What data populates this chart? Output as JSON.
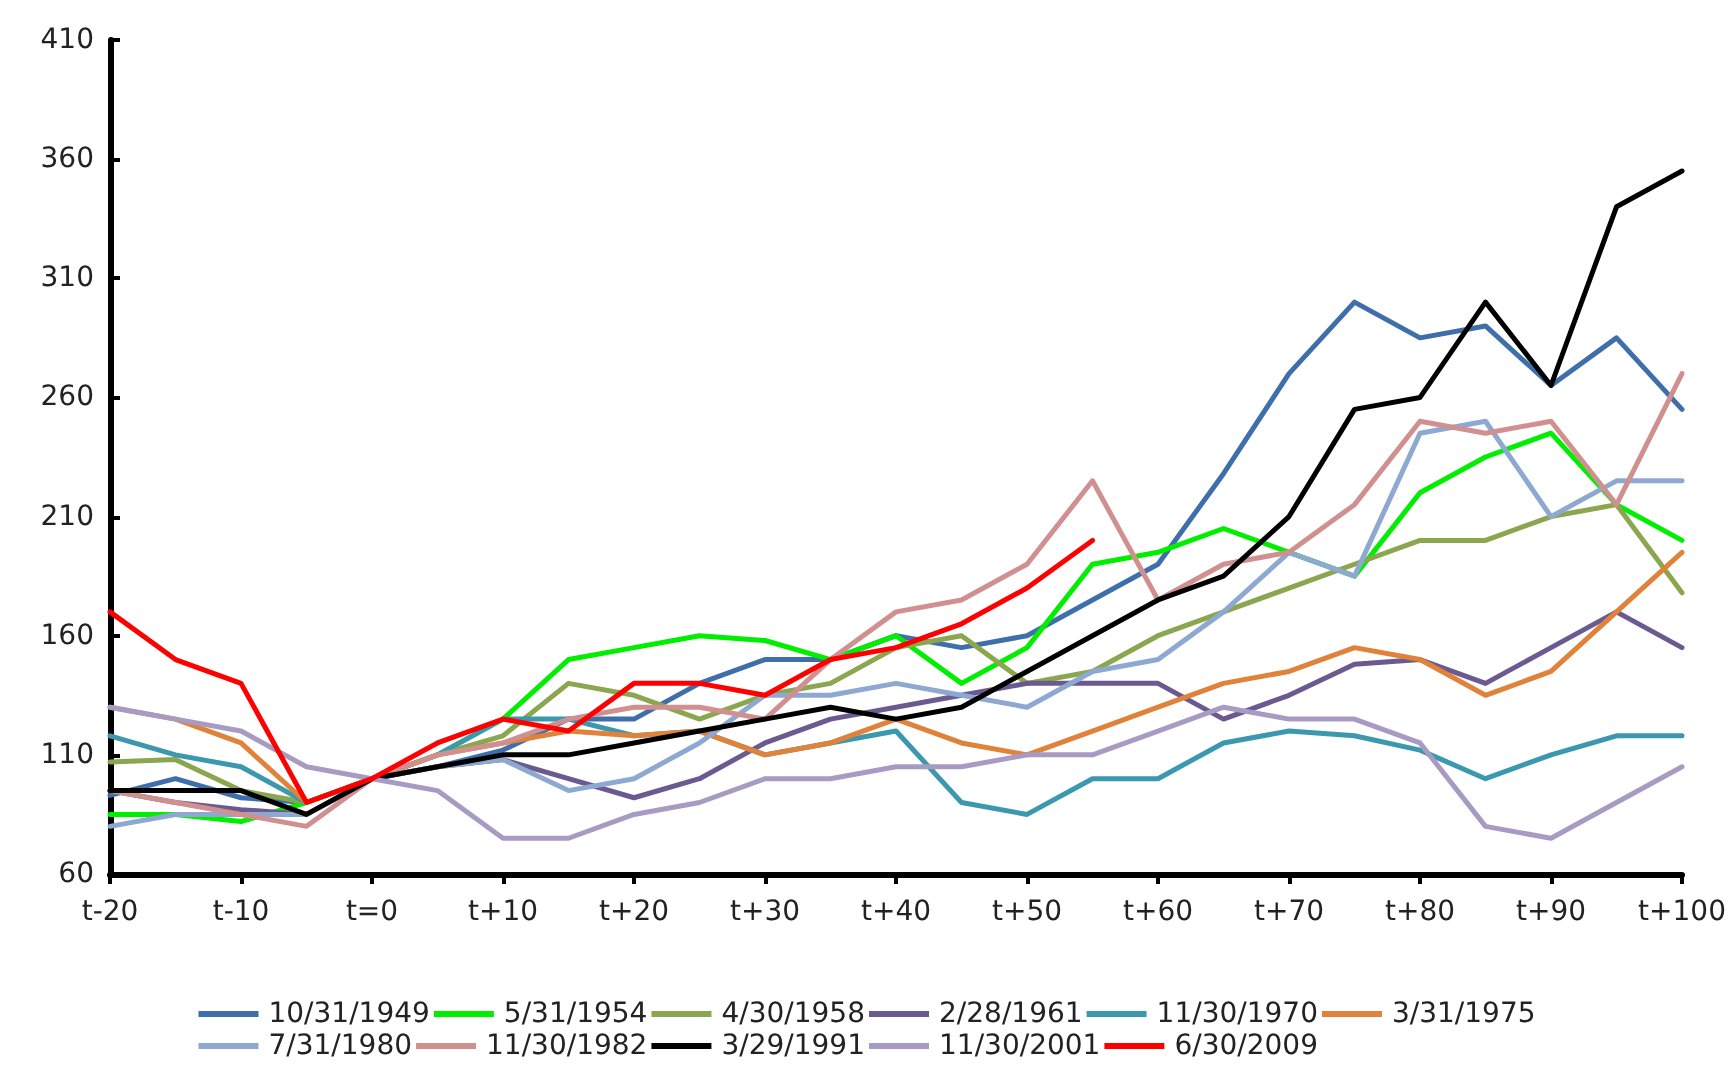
{
  "chart_data": {
    "type": "line",
    "ylim": [
      60,
      410
    ],
    "categories": [
      "t-20",
      null,
      "t-10",
      null,
      "t=0",
      null,
      "t+10",
      null,
      "t+20",
      null,
      "t+30",
      null,
      "t+40",
      null,
      "t+50",
      null,
      "t+60",
      null,
      "t+70",
      null,
      "t+80",
      null,
      "t+90",
      null,
      "t+100"
    ],
    "yticks": [
      60,
      110,
      160,
      210,
      260,
      310,
      360,
      410
    ],
    "grid": false,
    "legend": "bottom",
    "marker": "none",
    "line_style": "solid",
    "series": [
      {
        "name": "10/31/1949",
        "color": "#3f6faa",
        "values": [
          93,
          100,
          92,
          90,
          100,
          105,
          112,
          125,
          125,
          140,
          150,
          150,
          160,
          155,
          160,
          175,
          190,
          228,
          270,
          300,
          285,
          290,
          265,
          285,
          255
        ]
      },
      {
        "name": "5/31/1954",
        "color": "#00ee00",
        "values": [
          85,
          85,
          82,
          90,
          100,
          110,
          125,
          150,
          155,
          160,
          158,
          150,
          160,
          140,
          155,
          190,
          195,
          205,
          195,
          185,
          220,
          235,
          245,
          215,
          200
        ]
      },
      {
        "name": "4/30/1958",
        "color": "#8aa64e",
        "values": [
          107,
          108,
          95,
          90,
          100,
          110,
          118,
          140,
          135,
          125,
          135,
          140,
          155,
          160,
          140,
          145,
          160,
          170,
          180,
          190,
          200,
          200,
          210,
          215,
          178
        ]
      },
      {
        "name": "2/28/1961",
        "color": "#6a5a8f",
        "values": [
          95,
          90,
          87,
          85,
          100,
          105,
          108,
          100,
          92,
          100,
          115,
          125,
          130,
          135,
          140,
          140,
          140,
          125,
          135,
          148,
          150,
          140,
          155,
          170,
          155
        ]
      },
      {
        "name": "11/30/1970",
        "color": "#3b98ae",
        "values": [
          118,
          110,
          105,
          90,
          100,
          110,
          125,
          125,
          118,
          120,
          110,
          115,
          120,
          90,
          85,
          100,
          100,
          115,
          120,
          118,
          112,
          100,
          110,
          118,
          118
        ]
      },
      {
        "name": "3/31/1975",
        "color": "#e0823a",
        "values": [
          130,
          125,
          115,
          90,
          100,
          110,
          115,
          120,
          118,
          120,
          110,
          115,
          125,
          115,
          110,
          120,
          130,
          140,
          145,
          155,
          150,
          135,
          145,
          170,
          195
        ]
      },
      {
        "name": "7/31/1980",
        "color": "#8ea9d1",
        "values": [
          80,
          85,
          85,
          85,
          100,
          105,
          108,
          95,
          100,
          115,
          135,
          135,
          140,
          135,
          130,
          145,
          150,
          170,
          195,
          185,
          245,
          250,
          210,
          225,
          225
        ]
      },
      {
        "name": "11/30/1982",
        "color": "#d09090",
        "values": [
          95,
          90,
          85,
          80,
          100,
          110,
          115,
          125,
          130,
          130,
          125,
          150,
          170,
          175,
          190,
          225,
          175,
          190,
          195,
          215,
          250,
          245,
          250,
          215,
          270
        ]
      },
      {
        "name": "3/29/1991",
        "color": "#000000",
        "values": [
          95,
          95,
          95,
          85,
          100,
          105,
          110,
          110,
          115,
          120,
          125,
          130,
          125,
          130,
          145,
          160,
          175,
          185,
          210,
          255,
          260,
          300,
          265,
          340,
          355
        ]
      },
      {
        "name": "11/30/2001",
        "color": "#a89bc3",
        "values": [
          130,
          125,
          120,
          105,
          100,
          95,
          75,
          75,
          85,
          90,
          100,
          100,
          105,
          105,
          110,
          110,
          120,
          130,
          125,
          125,
          115,
          80,
          75,
          90,
          105
        ]
      },
      {
        "name": "6/30/2009",
        "color": "#ff0000",
        "values": [
          170,
          150,
          140,
          90,
          100,
          115,
          125,
          120,
          140,
          140,
          135,
          150,
          155,
          165,
          180,
          200,
          null,
          null,
          null,
          null,
          null,
          null,
          null,
          null,
          null
        ]
      }
    ]
  }
}
